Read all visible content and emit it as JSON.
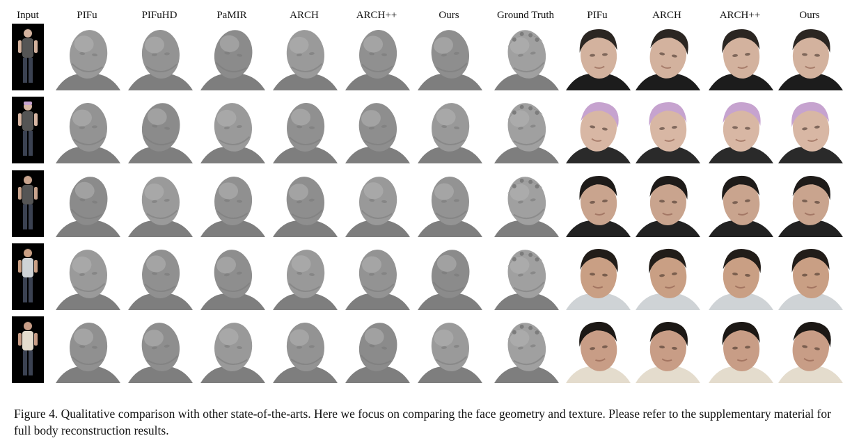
{
  "figure": {
    "headers": [
      "Input",
      "PIFu",
      "PIFuHD",
      "PaMIR",
      "ARCH",
      "ARCH++",
      "Ours",
      "Ground Truth",
      "PIFu",
      "ARCH",
      "ARCH++",
      "Ours"
    ],
    "column_kinds": [
      "input",
      "geometry",
      "geometry",
      "geometry",
      "geometry",
      "geometry",
      "geometry",
      "geometry",
      "texture",
      "texture",
      "texture",
      "texture"
    ],
    "rows": [
      {
        "hair": "#2b2622",
        "skin": "#d3b29e",
        "cloth": "#1c1c1c",
        "hat": ""
      },
      {
        "hair": "#1a1512",
        "skin": "#d8b7a4",
        "cloth": "#2a2a2a",
        "hat": "#c6a3cf"
      },
      {
        "hair": "#1e1b19",
        "skin": "#c9a48e",
        "cloth": "#222222",
        "hat": ""
      },
      {
        "hair": "#221d19",
        "skin": "#c99f84",
        "cloth": "#cfd3d6",
        "hat": ""
      },
      {
        "hair": "#1c1815",
        "skin": "#c89d86",
        "cloth": "#e4dccd",
        "hat": ""
      }
    ]
  },
  "caption": {
    "text": "Figure 4. Qualitative comparison with other state-of-the-arts. Here we focus on comparing the face geometry and texture. Please refer to the supplementary material for full body reconstruction results."
  }
}
